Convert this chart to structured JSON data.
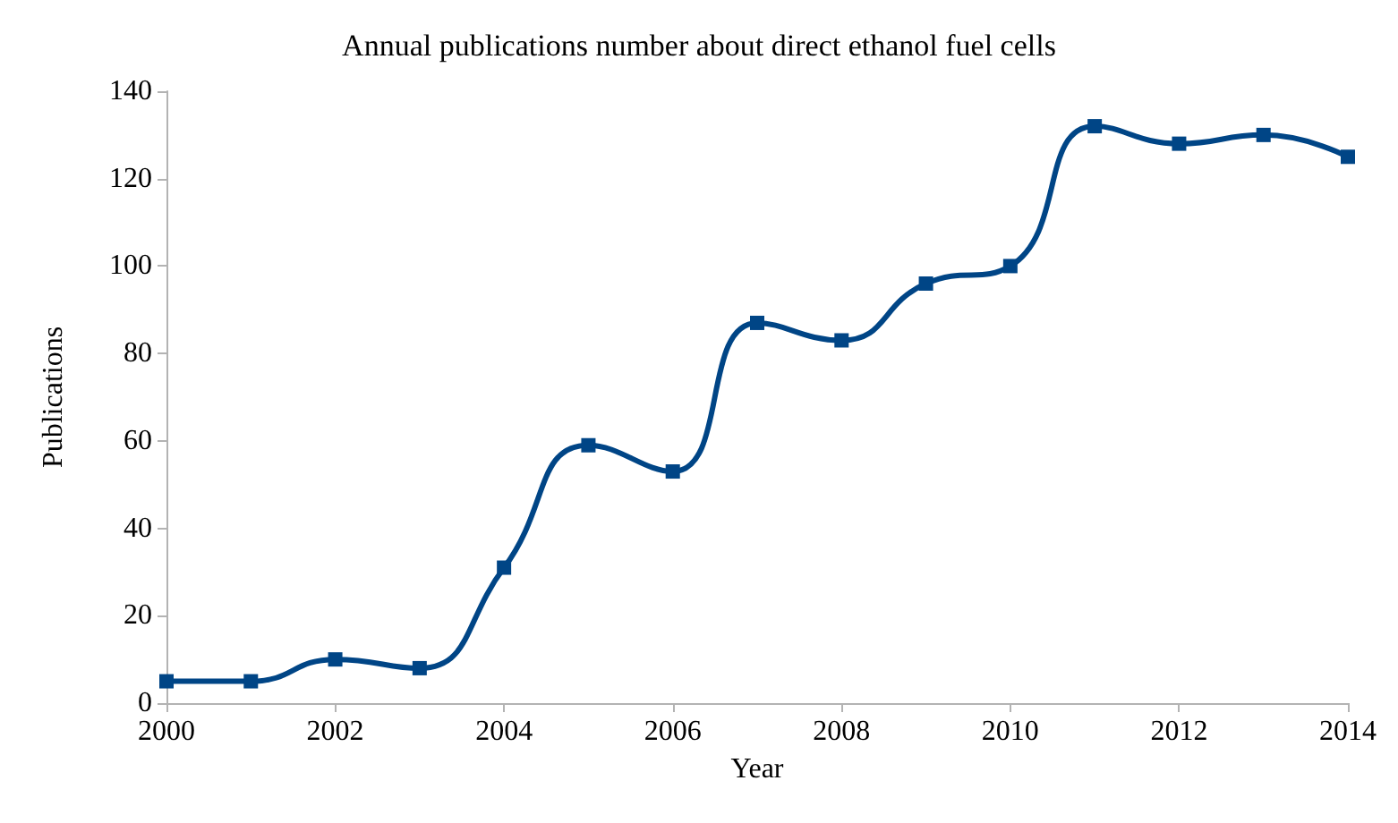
{
  "chart_data": {
    "type": "line",
    "title": "Annual publications number about direct ethanol fuel cells",
    "xlabel": "Year",
    "ylabel": "Publications",
    "x": [
      2000,
      2001,
      2002,
      2003,
      2004,
      2005,
      2006,
      2007,
      2008,
      2009,
      2010,
      2011,
      2012,
      2013,
      2014
    ],
    "series": [
      {
        "color": "#004586",
        "values": [
          5,
          5,
          10,
          8,
          31,
          59,
          53,
          87,
          83,
          96,
          100,
          132,
          128,
          130,
          125
        ]
      }
    ],
    "xlim": [
      2000,
      2014
    ],
    "xticks": [
      2000,
      2002,
      2004,
      2006,
      2008,
      2010,
      2012,
      2014
    ],
    "ylim": [
      0,
      140
    ],
    "yticks": [
      0,
      20,
      40,
      60,
      80,
      100,
      120,
      140
    ],
    "grid": false,
    "marker": "square",
    "line_style": "solid"
  }
}
